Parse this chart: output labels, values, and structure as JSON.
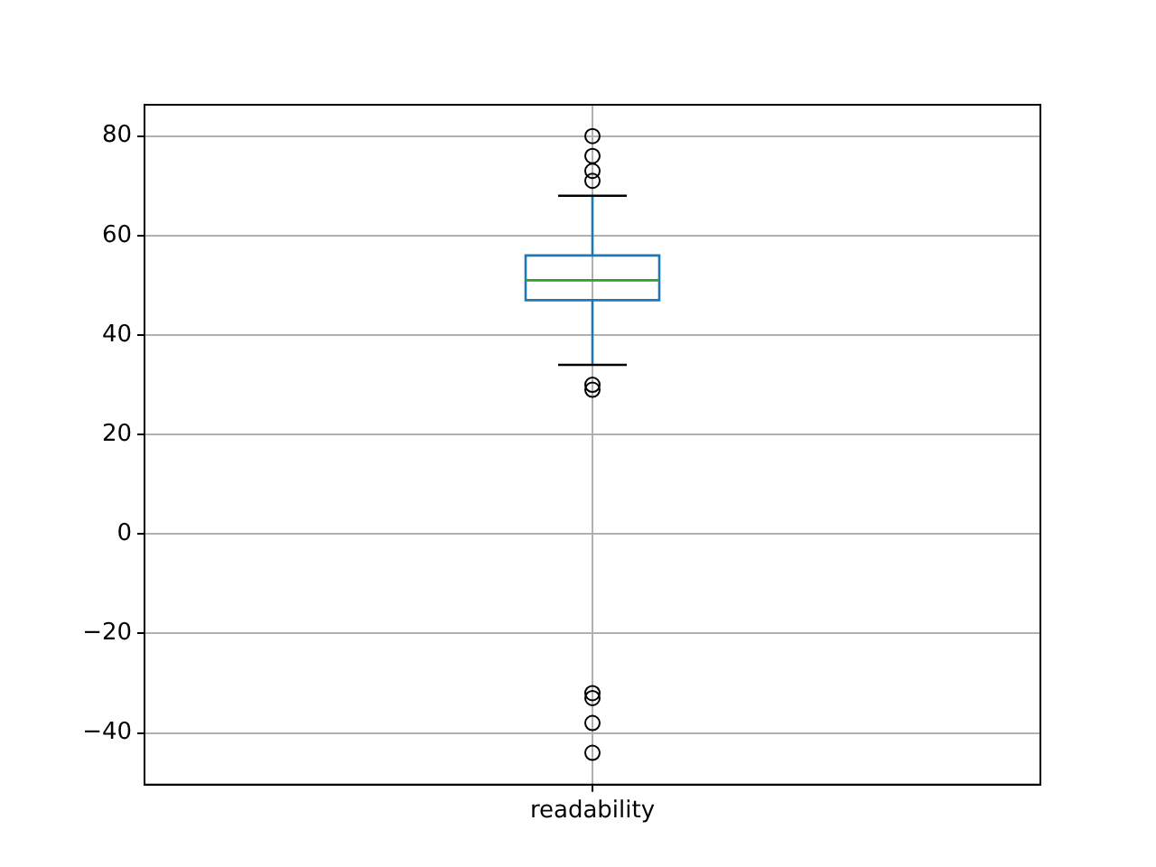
{
  "chart_data": {
    "type": "box",
    "categories": [
      "readability"
    ],
    "boxes": [
      {
        "low": 34,
        "q1": 47,
        "median": 51,
        "q3": 56,
        "high": 68,
        "outliers": [
          80,
          76,
          73,
          71,
          30,
          29,
          -32,
          -33,
          -38,
          -44
        ]
      }
    ],
    "color": "#1f77b4",
    "ylim": [
      -50.4,
      86.3
    ],
    "yticks": [
      -40,
      -20,
      0,
      20,
      40,
      60,
      80
    ],
    "grid": true
  }
}
